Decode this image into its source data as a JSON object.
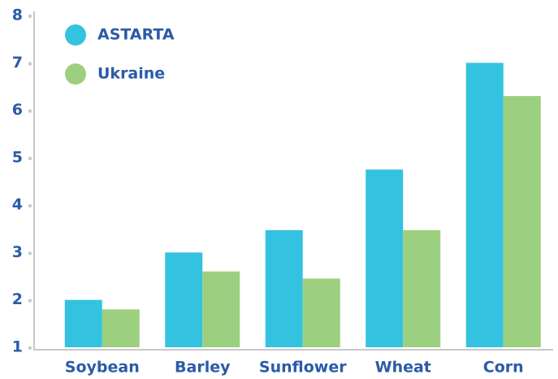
{
  "chart_data": {
    "type": "bar",
    "categories": [
      "Soybean",
      "Barley",
      "Sunflower",
      "Wheat",
      "Corn"
    ],
    "series": [
      {
        "name": "ASTARTA",
        "color": "#33c3e0",
        "values": [
          2.0,
          3.0,
          3.47,
          4.75,
          7.0
        ]
      },
      {
        "name": "Ukraine",
        "color": "#9dcf80",
        "values": [
          1.8,
          2.6,
          2.45,
          3.47,
          6.3
        ]
      }
    ],
    "ylim": [
      1,
      8
    ],
    "yticks": [
      1,
      2,
      3,
      4,
      5,
      6,
      7,
      8
    ],
    "legend": "top-left"
  }
}
